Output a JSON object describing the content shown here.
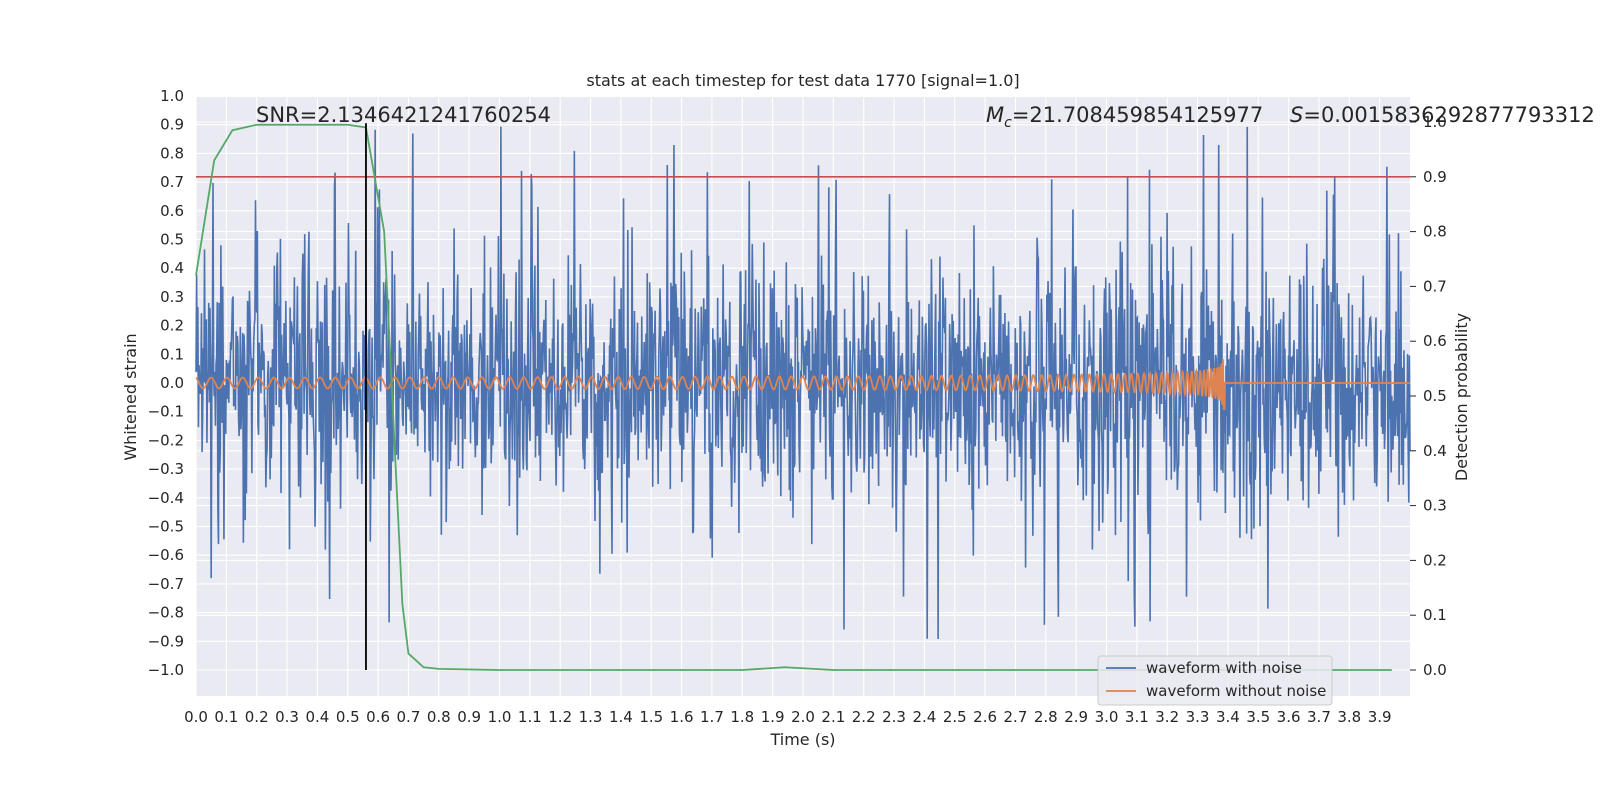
{
  "chart_data": {
    "type": "line",
    "title": "stats at each timestep for test data 1770 [signal=1.0]",
    "xlabel": "Time (s)",
    "ylabel": "Whitened strain",
    "ylabel_right": "Detection probability",
    "xlim": [
      0.0,
      4.0
    ],
    "ylim": [
      -1.0,
      1.0
    ],
    "ylim_right": [
      0.0,
      1.0
    ],
    "x_ticks": [
      "0.0",
      "0.1",
      "0.2",
      "0.3",
      "0.4",
      "0.5",
      "0.6",
      "0.7",
      "0.8",
      "0.9",
      "1.0",
      "1.1",
      "1.2",
      "1.3",
      "1.4",
      "1.5",
      "1.6",
      "1.7",
      "1.8",
      "1.9",
      "2.0",
      "2.1",
      "2.2",
      "2.3",
      "2.4",
      "2.5",
      "2.6",
      "2.7",
      "2.8",
      "2.9",
      "3.0",
      "3.1",
      "3.2",
      "3.3",
      "3.4",
      "3.5",
      "3.6",
      "3.7",
      "3.8",
      "3.9"
    ],
    "y_ticks": [
      "1.0",
      "0.9",
      "0.8",
      "0.7",
      "0.6",
      "0.5",
      "0.4",
      "0.3",
      "0.2",
      "0.1",
      "0.0",
      "−0.1",
      "−0.2",
      "−0.3",
      "−0.4",
      "−0.5",
      "−0.6",
      "−0.7",
      "−0.8",
      "−0.9",
      "−1.0"
    ],
    "y_ticks_right": [
      "1.0",
      "0.9",
      "0.8",
      "0.7",
      "0.6",
      "0.5",
      "0.4",
      "0.3",
      "0.2",
      "0.1",
      "0.0"
    ],
    "grid": true,
    "legend_position": "lower-right",
    "annotations": {
      "snr": "SNR=2.1346421241760254",
      "mc_symbol": "M",
      "mc_subscript": "c",
      "mc_value": "=21.708459854125977",
      "s_symbol": "S",
      "s_value": "=0.0015836292877793312"
    },
    "series": [
      {
        "name": "waveform with noise",
        "color": "#4c72b0",
        "kind": "noise",
        "amplitude_envelope": 0.45,
        "peak_max": 0.91,
        "peak_min": -0.99
      },
      {
        "name": "waveform without noise",
        "color": "#dd8452",
        "kind": "chirp",
        "merger_time": 3.39,
        "peak_amplitude": 0.1
      },
      {
        "name": "detection probability",
        "color": "#55a868",
        "axis": "right",
        "x": [
          0.0,
          0.06,
          0.12,
          0.2,
          0.3,
          0.4,
          0.5,
          0.56,
          0.62,
          0.68,
          0.7,
          0.75,
          0.8,
          1.0,
          1.5,
          1.8,
          1.94,
          2.1,
          2.5,
          3.0,
          3.5,
          3.94
        ],
        "y": [
          0.72,
          0.93,
          0.985,
          0.995,
          0.995,
          0.995,
          0.995,
          0.99,
          0.8,
          0.12,
          0.03,
          0.005,
          0.002,
          0.0,
          0.0,
          0.0,
          0.005,
          0.0,
          0.0,
          0.0,
          0.0,
          0.0
        ]
      }
    ],
    "threshold": {
      "value": 0.9,
      "axis": "right",
      "color": "#c44e52"
    },
    "vertical_marker": {
      "x": 0.56,
      "color": "#000000"
    }
  }
}
